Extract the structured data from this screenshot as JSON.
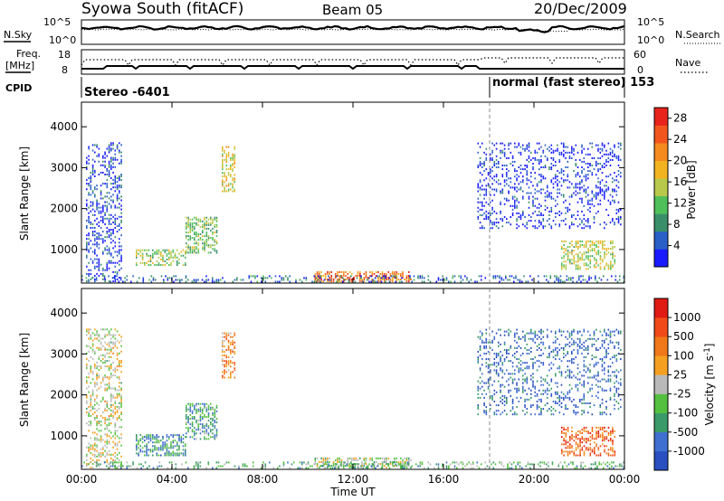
{
  "header": {
    "station": "Syowa South (fitACF)",
    "beam": "Beam 05",
    "date": "20/Dec/2009"
  },
  "top_panels": {
    "nsky_label": "N.Sky",
    "nsky_ticks": [
      "10^5",
      "10^0"
    ],
    "nsky_right_ticks": [
      "10^5",
      "10^0"
    ],
    "nsearch_label": "N.Search",
    "freq_label_1": "Freq.",
    "freq_label_2": "[MHz]",
    "freq_ticks": [
      "18",
      "8"
    ],
    "nave_ticks": [
      "60",
      "0"
    ],
    "nave_label": "Nave",
    "cpid_label": "CPID",
    "cpid_left": "Stereo -6401",
    "cpid_right": "normal (fast stereo) 153"
  },
  "chart_data": [
    {
      "type": "heatmap",
      "title": "",
      "xlabel": "Time UT",
      "ylabel": "Slant Range [km]",
      "x_tick_labels": [
        "00:00",
        "04:00",
        "08:00",
        "12:00",
        "16:00",
        "20:00",
        "00:00"
      ],
      "xlim_hours": [
        0,
        24
      ],
      "ylim": [
        180,
        4600
      ],
      "y_ticks": [
        1000,
        2000,
        3000,
        4000
      ],
      "colorbar": {
        "label": "Power [dB]",
        "ticks": [
          4,
          8,
          12,
          16,
          20,
          24,
          28
        ],
        "range": [
          0,
          30
        ],
        "colors": [
          "#1a1aff",
          "#2a5fc8",
          "#3a8f6a",
          "#4fbf5a",
          "#b8c84a",
          "#f2b320",
          "#f58a1e",
          "#f2561d",
          "#e8231c"
        ]
      },
      "regions": [
        {
          "t0": 0.2,
          "t1": 1.8,
          "r0": 200,
          "r1": 3600,
          "density": 0.35,
          "level": 0.12
        },
        {
          "t0": 2.4,
          "t1": 4.6,
          "r0": 600,
          "r1": 1000,
          "density": 0.55,
          "level": 0.45
        },
        {
          "t0": 4.6,
          "t1": 6.0,
          "r0": 900,
          "r1": 1800,
          "density": 0.55,
          "level": 0.4
        },
        {
          "t0": 6.2,
          "t1": 6.8,
          "r0": 2400,
          "r1": 3500,
          "density": 0.45,
          "level": 0.55
        },
        {
          "t0": 10.3,
          "t1": 14.6,
          "r0": 200,
          "r1": 450,
          "density": 0.6,
          "level": 0.78
        },
        {
          "t0": 17.5,
          "t1": 23.8,
          "r0": 1500,
          "r1": 3600,
          "density": 0.25,
          "level": 0.08
        },
        {
          "t0": 21.2,
          "t1": 23.6,
          "r0": 500,
          "r1": 1200,
          "density": 0.5,
          "level": 0.5
        },
        {
          "t0": 0.0,
          "t1": 24.0,
          "r0": 190,
          "r1": 330,
          "density": 0.3,
          "level": 0.2
        }
      ]
    },
    {
      "type": "heatmap",
      "title": "",
      "xlabel": "Time UT",
      "ylabel": "Slant Range [km]",
      "x_tick_labels": [
        "00:00",
        "04:00",
        "08:00",
        "12:00",
        "16:00",
        "20:00",
        "00:00"
      ],
      "xlim_hours": [
        0,
        24
      ],
      "ylim": [
        180,
        4600
      ],
      "y_ticks": [
        1000,
        2000,
        3000,
        4000
      ],
      "colorbar": {
        "label": "Velocity [m s-1]",
        "label_main": "Velocity [m s",
        "label_sup": "-1",
        "label_end": "]",
        "ticks": [
          1000,
          500,
          100,
          25,
          -25,
          -100,
          -500,
          -1000
        ],
        "colors": [
          "#2a4fc0",
          "#3f6fd0",
          "#3a9a6a",
          "#55c040",
          "#b9b9b9",
          "#f5a020",
          "#f07818",
          "#f04a18",
          "#e01a14"
        ]
      },
      "regions": [
        {
          "t0": 0.2,
          "t1": 1.8,
          "r0": 200,
          "r1": 3600,
          "density": 0.35,
          "level": 0.5
        },
        {
          "t0": 2.4,
          "t1": 4.6,
          "r0": 500,
          "r1": 1000,
          "density": 0.55,
          "level": 0.25
        },
        {
          "t0": 4.6,
          "t1": 6.0,
          "r0": 900,
          "r1": 1800,
          "density": 0.55,
          "level": 0.3
        },
        {
          "t0": 6.2,
          "t1": 6.8,
          "r0": 2400,
          "r1": 3500,
          "density": 0.45,
          "level": 0.7
        },
        {
          "t0": 10.3,
          "t1": 14.6,
          "r0": 200,
          "r1": 450,
          "density": 0.6,
          "level": 0.45
        },
        {
          "t0": 17.5,
          "t1": 23.8,
          "r0": 1500,
          "r1": 3600,
          "density": 0.25,
          "level": 0.15
        },
        {
          "t0": 21.2,
          "t1": 23.6,
          "r0": 500,
          "r1": 1200,
          "density": 0.5,
          "level": 0.8
        },
        {
          "t0": 0.0,
          "t1": 24.0,
          "r0": 190,
          "r1": 330,
          "density": 0.3,
          "level": 0.35
        }
      ]
    }
  ]
}
